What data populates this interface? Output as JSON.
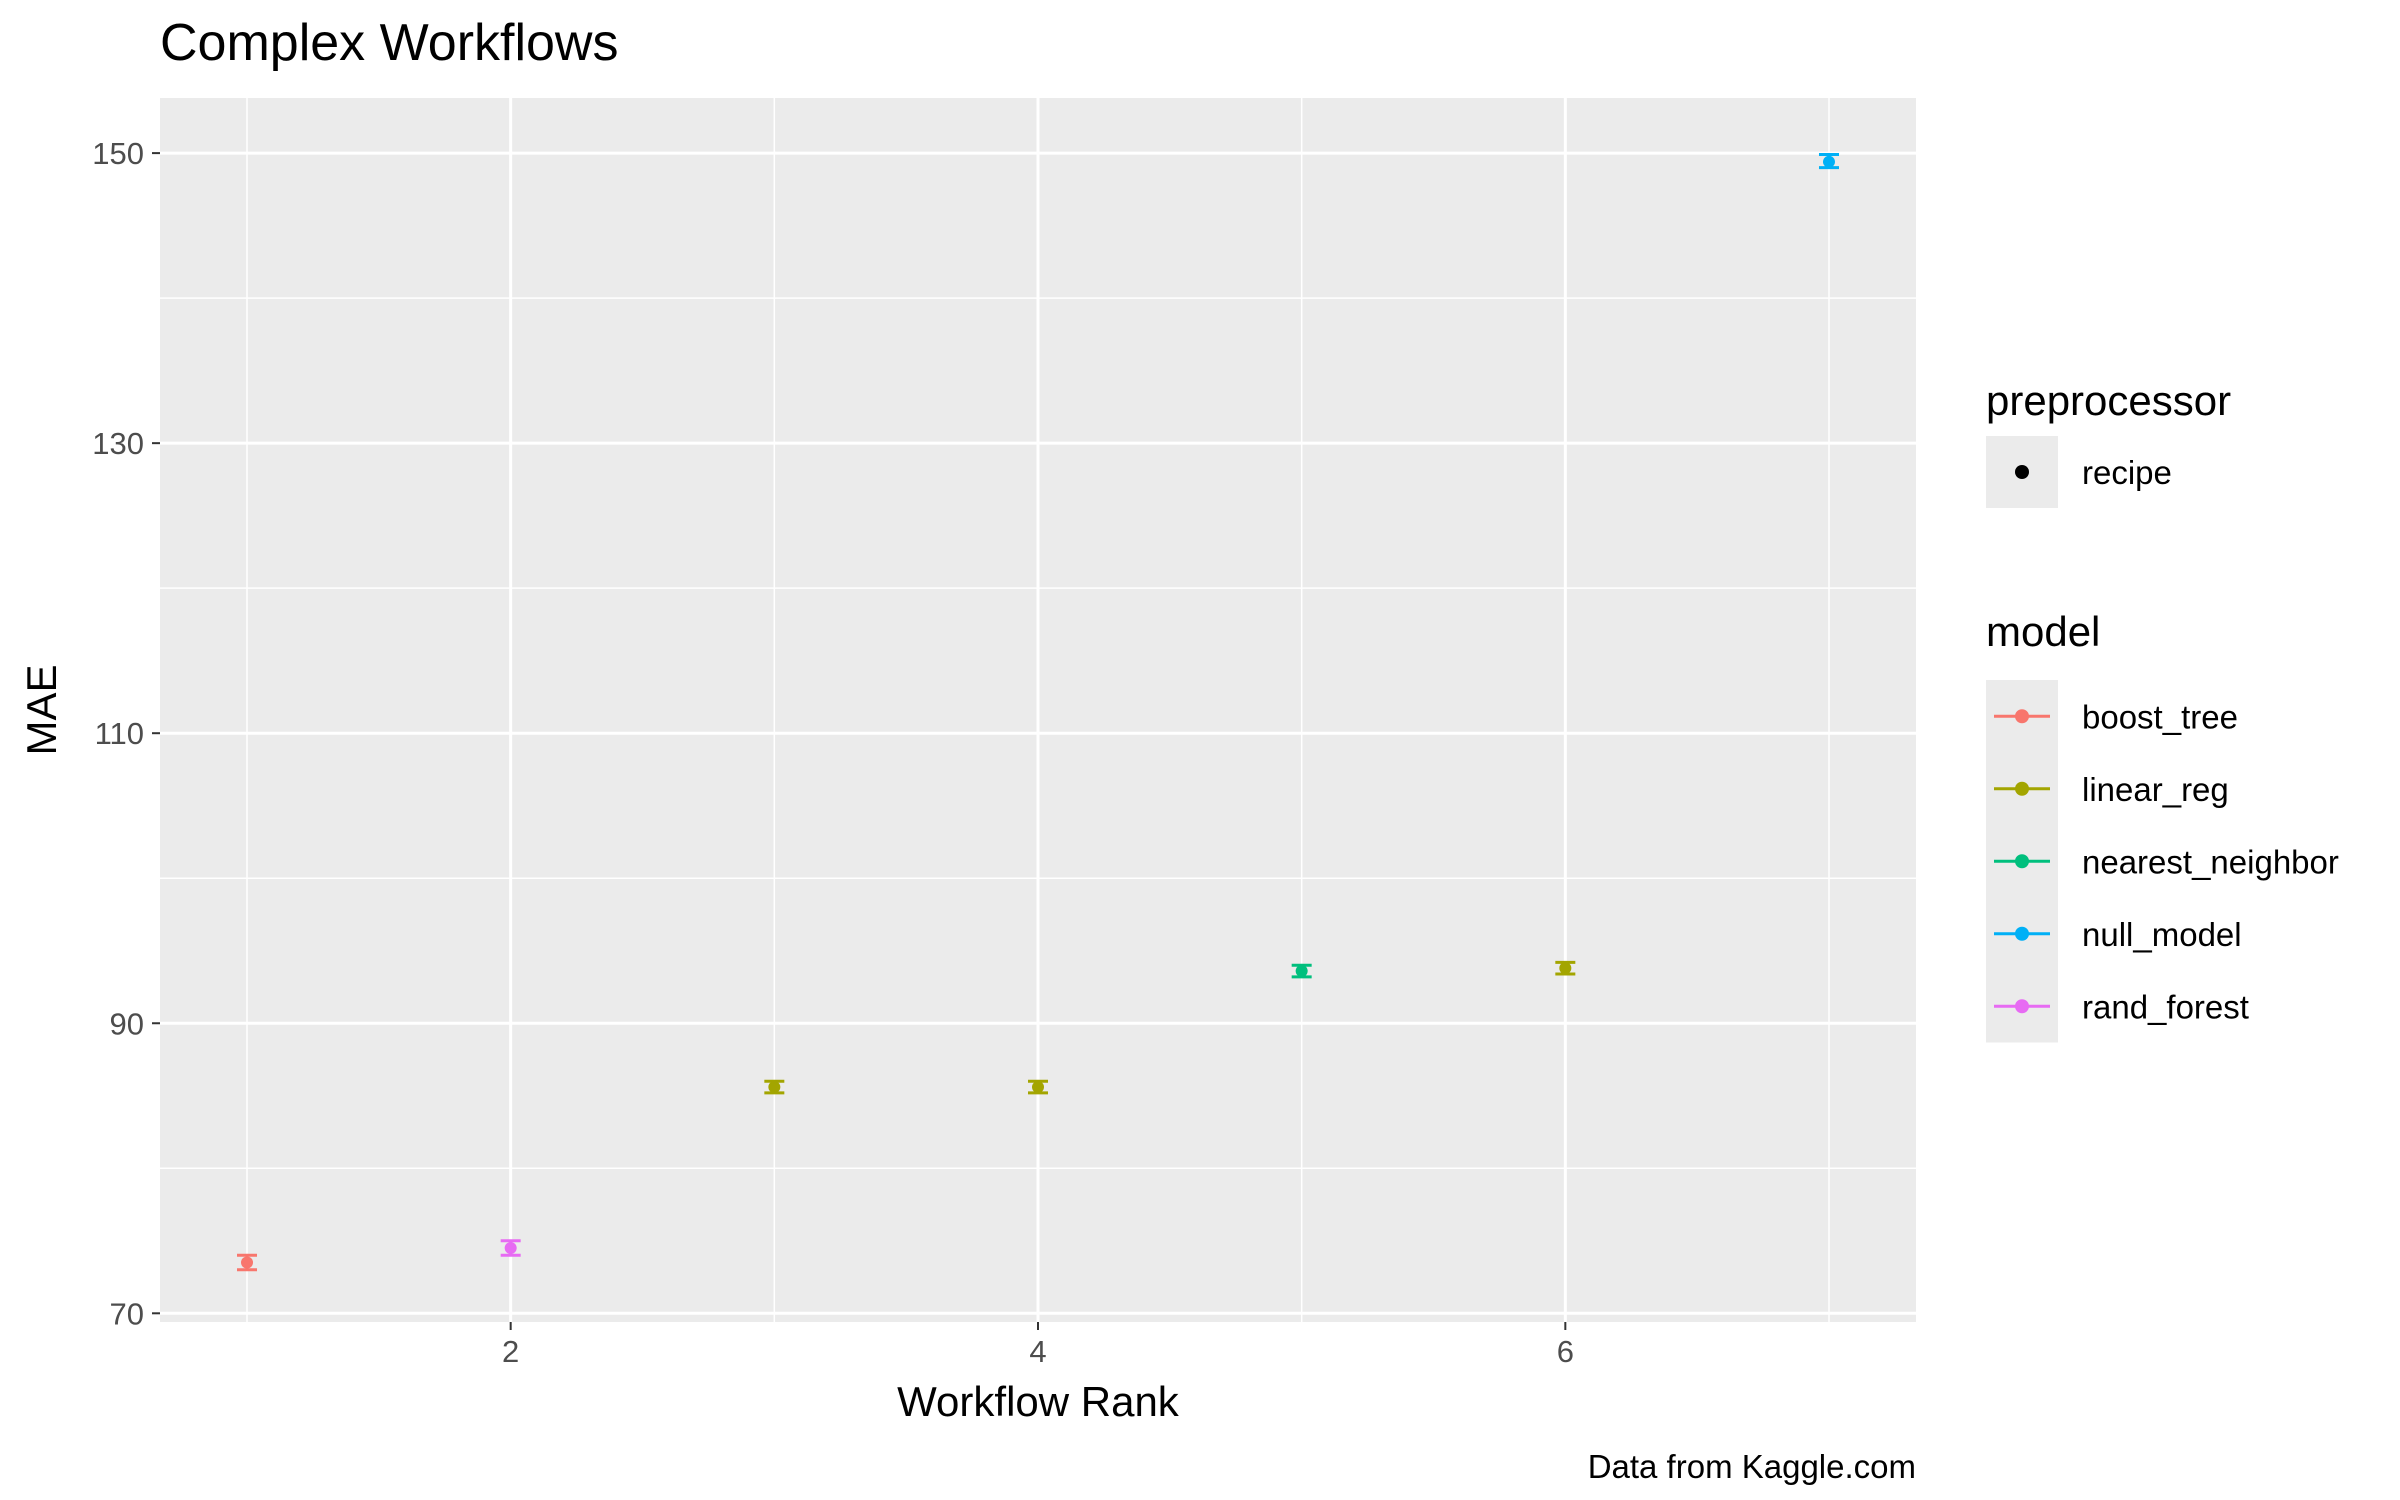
{
  "chart_data": {
    "type": "scatter",
    "title": "Complex Workflows",
    "xlabel": "Workflow Rank",
    "ylabel": "MAE",
    "caption": "Data from Kaggle.com",
    "xlim": [
      0.67,
      7.33
    ],
    "ylim": [
      69.4,
      153.8
    ],
    "x_ticks": [
      2,
      4,
      6
    ],
    "x_tick_labels": [
      "2",
      "4",
      "6"
    ],
    "y_ticks": [
      70,
      90,
      110,
      130,
      150
    ],
    "y_tick_labels": [
      "70",
      "90",
      "110",
      "130",
      "150"
    ],
    "grid": true,
    "error_bars": true,
    "legend_position": "right",
    "legend": {
      "preprocessor": {
        "title": "preprocessor",
        "entries": [
          {
            "label": "recipe",
            "shape": "point"
          }
        ]
      },
      "model": {
        "title": "model",
        "entries": [
          {
            "label": "boost_tree",
            "color": "#F8766D"
          },
          {
            "label": "linear_reg",
            "color": "#A3A500"
          },
          {
            "label": "nearest_neighbor",
            "color": "#00BF7D"
          },
          {
            "label": "null_model",
            "color": "#00B0F6"
          },
          {
            "label": "rand_forest",
            "color": "#E76BF3"
          }
        ]
      }
    },
    "series": [
      {
        "name": "boost_tree",
        "color": "#F8766D",
        "preprocessor": "recipe",
        "points": [
          {
            "x": 1,
            "y": 73.5,
            "lower": 73.0,
            "upper": 74.0
          }
        ]
      },
      {
        "name": "rand_forest",
        "color": "#E76BF3",
        "preprocessor": "recipe",
        "points": [
          {
            "x": 2,
            "y": 74.5,
            "lower": 74.0,
            "upper": 75.0
          }
        ]
      },
      {
        "name": "linear_reg",
        "color": "#A3A500",
        "preprocessor": "recipe",
        "points": [
          {
            "x": 3,
            "y": 85.6,
            "lower": 85.2,
            "upper": 86.0
          },
          {
            "x": 4,
            "y": 85.6,
            "lower": 85.2,
            "upper": 86.0
          },
          {
            "x": 6,
            "y": 93.8,
            "lower": 93.4,
            "upper": 94.2
          }
        ]
      },
      {
        "name": "nearest_neighbor",
        "color": "#00BF7D",
        "preprocessor": "recipe",
        "points": [
          {
            "x": 5,
            "y": 93.6,
            "lower": 93.2,
            "upper": 94.0
          }
        ]
      },
      {
        "name": "null_model",
        "color": "#00B0F6",
        "preprocessor": "recipe",
        "points": [
          {
            "x": 7,
            "y": 149.4,
            "lower": 149.0,
            "upper": 149.9
          }
        ]
      }
    ]
  }
}
